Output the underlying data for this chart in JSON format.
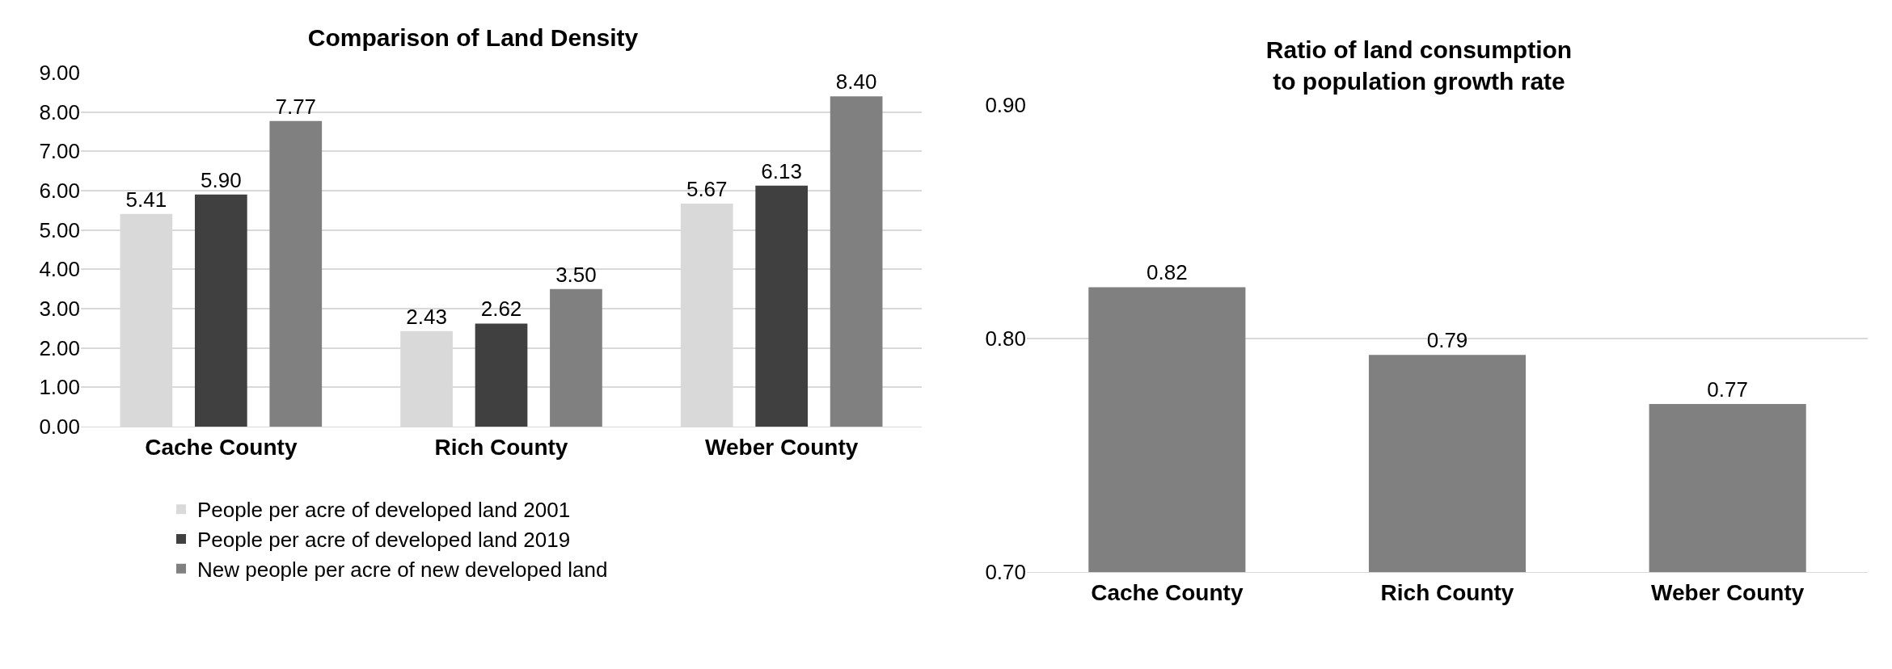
{
  "chart_data": [
    {
      "type": "bar",
      "title": "Comparison of Land Density",
      "categories": [
        "Cache County",
        "Rich County",
        "Weber County"
      ],
      "series": [
        {
          "name": "People per acre of developed land 2001",
          "color": "#d9d9d9",
          "values": [
            5.41,
            2.43,
            5.67
          ],
          "value_labels": [
            "5.41",
            "2.43",
            "5.67"
          ]
        },
        {
          "name": "People per acre of developed land 2019",
          "color": "#404040",
          "values": [
            5.9,
            2.62,
            6.13
          ],
          "value_labels": [
            "5.90",
            "2.62",
            "6.13"
          ]
        },
        {
          "name": "New people per acre of new developed land",
          "color": "#808080",
          "values": [
            7.77,
            3.5,
            8.4
          ],
          "value_labels": [
            "7.77",
            "3.50",
            "8.40"
          ]
        }
      ],
      "ylim": [
        0,
        9
      ],
      "yticks": [
        {
          "value": 0,
          "label": "0.00"
        },
        {
          "value": 1,
          "label": "1.00"
        },
        {
          "value": 2,
          "label": "2.00"
        },
        {
          "value": 3,
          "label": "3.00"
        },
        {
          "value": 4,
          "label": "4.00"
        },
        {
          "value": 5,
          "label": "5.00"
        },
        {
          "value": 6,
          "label": "6.00"
        },
        {
          "value": 7,
          "label": "7.00"
        },
        {
          "value": 8,
          "label": "8.00"
        },
        {
          "value": 9,
          "label": "9.00"
        }
      ],
      "grid": "y",
      "legend": "bottom"
    },
    {
      "type": "bar",
      "title": "Ratio of land consumption\nto population growth rate",
      "categories": [
        "Cache County",
        "Rich County",
        "Weber County"
      ],
      "series": [
        {
          "color": "#808080",
          "values": [
            0.822,
            0.793,
            0.772
          ],
          "value_labels": [
            "0.82",
            "0.79",
            "0.77"
          ]
        }
      ],
      "ylim": [
        0.7,
        0.9
      ],
      "yticks": [
        {
          "value": 0.7,
          "label": "0.70"
        },
        {
          "value": 0.8,
          "label": "0.80"
        },
        {
          "value": 0.9,
          "label": "0.90"
        }
      ],
      "grid": "y",
      "legend": false
    }
  ]
}
